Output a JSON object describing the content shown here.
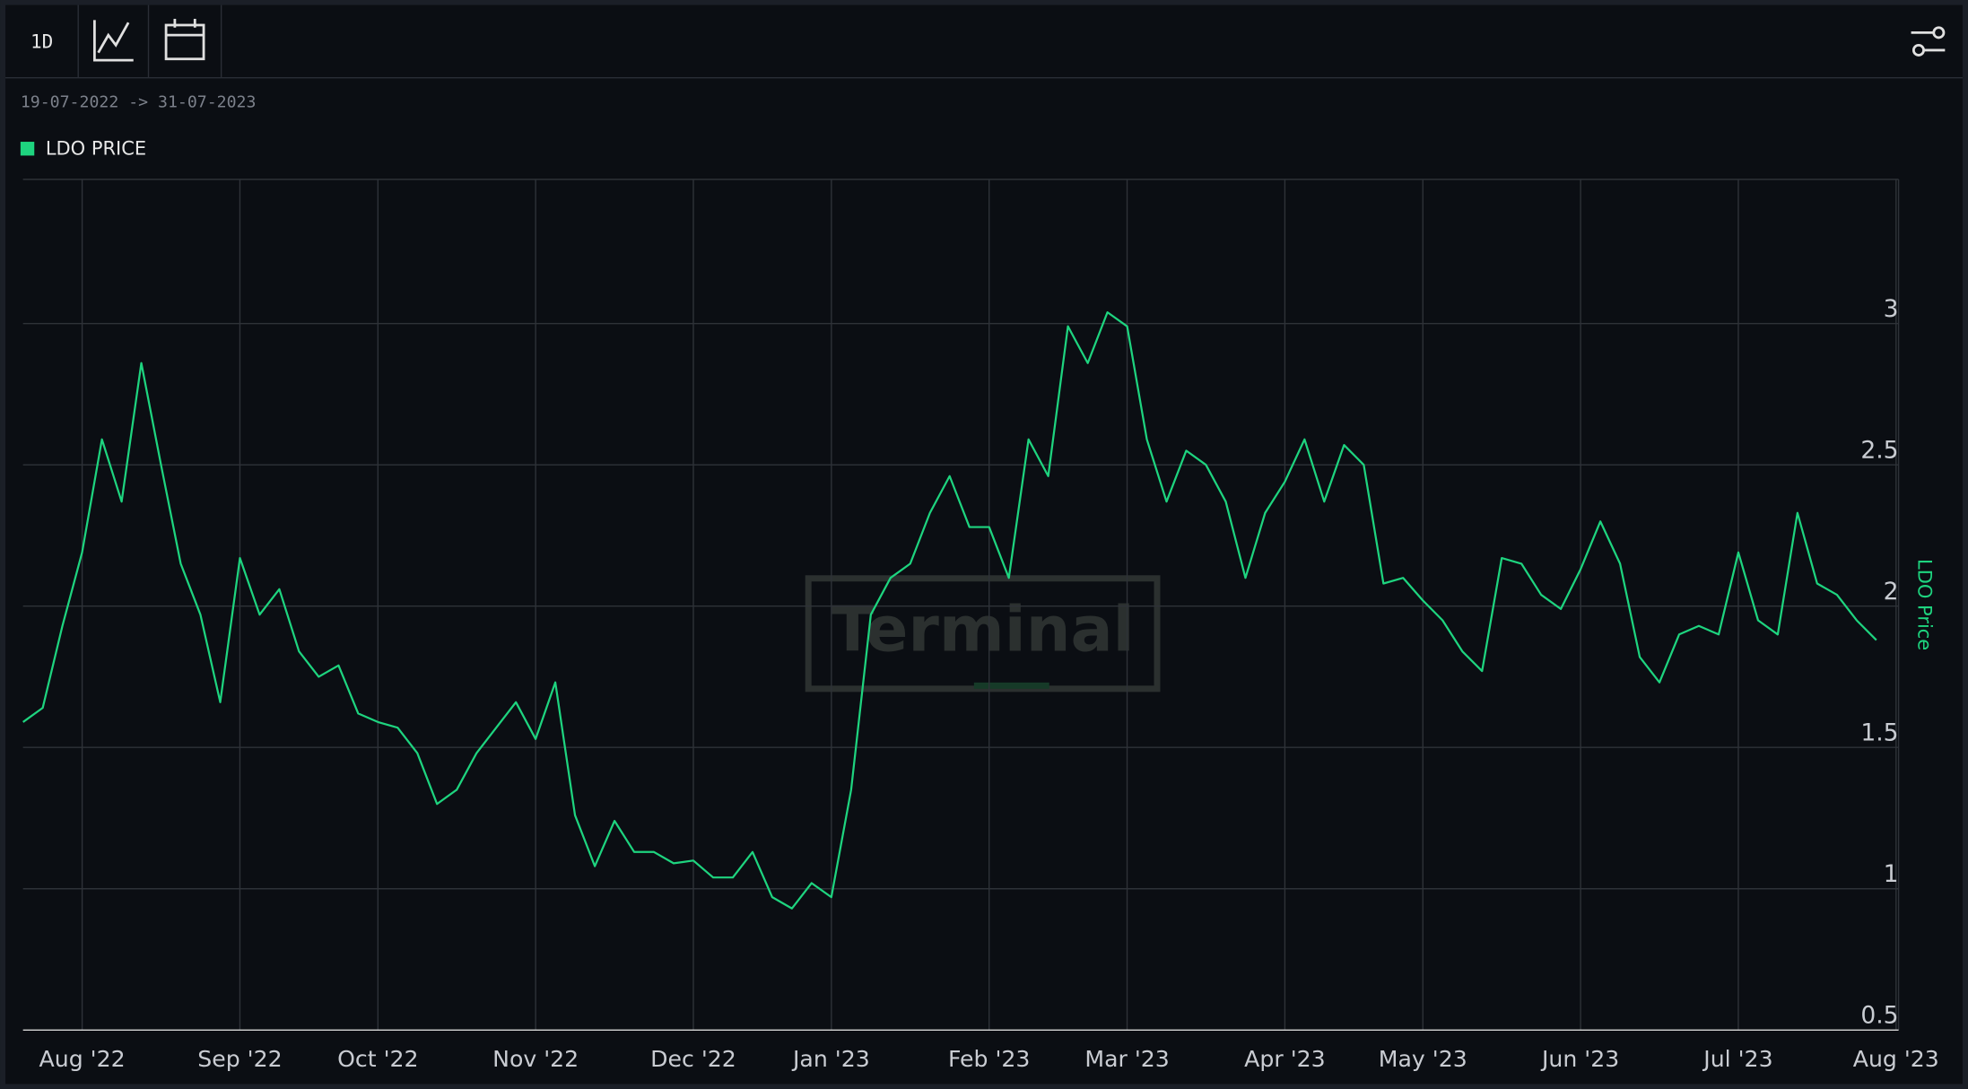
{
  "toolbar": {
    "interval": "1D"
  },
  "date_range": "19-07-2022 -> 31-07-2023",
  "watermark": "Terminal",
  "chart_data": {
    "type": "line",
    "y_axis_label": "LDO Price",
    "categories": [
      null,
      null,
      null,
      "Aug '22",
      null,
      null,
      null,
      null,
      null,
      null,
      null,
      "Sep '22",
      null,
      null,
      null,
      null,
      null,
      null,
      "Oct '22",
      null,
      null,
      null,
      null,
      null,
      null,
      null,
      "Nov '22",
      null,
      null,
      null,
      null,
      null,
      null,
      null,
      "Dec '22",
      null,
      null,
      null,
      null,
      null,
      null,
      "Jan '23",
      null,
      null,
      null,
      null,
      null,
      null,
      null,
      "Feb '23",
      null,
      null,
      null,
      null,
      null,
      null,
      "Mar '23",
      null,
      null,
      null,
      null,
      null,
      null,
      null,
      "Apr '23",
      null,
      null,
      null,
      null,
      null,
      null,
      "May '23",
      null,
      null,
      null,
      null,
      null,
      null,
      null,
      "Jun '23",
      null,
      null,
      null,
      null,
      null,
      null,
      null,
      "Jul '23",
      null,
      null,
      null,
      null,
      null,
      null,
      null,
      "Aug '23"
    ],
    "series": [
      {
        "name": "LDO PRICE",
        "color": "#1ed47f",
        "values": [
          1.59,
          1.64,
          1.93,
          2.19,
          2.59,
          2.37,
          2.86,
          2.5,
          2.15,
          1.97,
          1.66,
          2.17,
          1.97,
          2.06,
          1.84,
          1.75,
          1.79,
          1.62,
          1.59,
          1.57,
          1.48,
          1.3,
          1.35,
          1.48,
          1.57,
          1.66,
          1.53,
          1.73,
          1.26,
          1.08,
          1.24,
          1.13,
          1.13,
          1.09,
          1.1,
          1.04,
          1.04,
          1.13,
          0.97,
          0.93,
          1.02,
          0.97,
          1.35,
          1.97,
          2.1,
          2.15,
          2.33,
          2.46,
          2.28,
          2.28,
          2.1,
          2.59,
          2.46,
          2.99,
          2.86,
          3.04,
          2.99,
          2.59,
          2.37,
          2.55,
          2.5,
          2.37,
          2.1,
          2.33,
          2.44,
          2.59,
          2.37,
          2.57,
          2.5,
          2.08,
          2.1,
          2.02,
          1.95,
          1.84,
          1.77,
          2.17,
          2.15,
          2.04,
          1.99,
          2.13,
          2.3,
          2.15,
          1.82,
          1.73,
          1.9,
          1.93,
          1.9,
          2.19,
          1.95,
          1.9,
          2.33,
          2.08,
          2.04,
          1.95,
          1.88,
          null
        ]
      }
    ],
    "ylim": [
      0.5,
      3.51
    ],
    "yticks": [
      0.5,
      1,
      1.5,
      2,
      2.5,
      3
    ],
    "grid": true,
    "legend": "top-left"
  }
}
